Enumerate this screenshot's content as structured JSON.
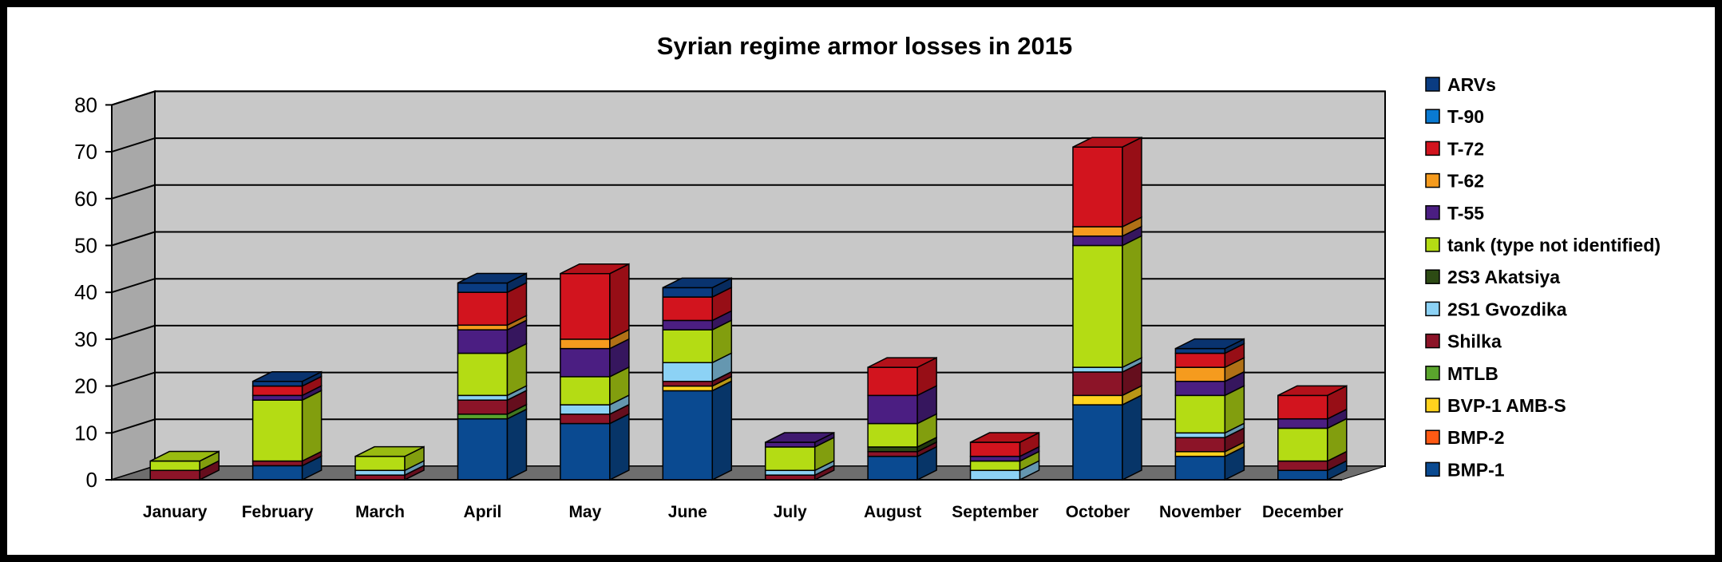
{
  "chart_data": {
    "type": "bar",
    "stacked": true,
    "style": "3d-stacked-column",
    "title": "Syrian regime armor losses in 2015",
    "xlabel": "",
    "ylabel": "",
    "ylim": [
      0,
      80
    ],
    "yticks": [
      "0",
      "10",
      "20",
      "30",
      "40",
      "50",
      "60",
      "70",
      "80"
    ],
    "grid": true,
    "legend_position": "right",
    "categories": [
      "January",
      "February",
      "March",
      "April",
      "May",
      "June",
      "July",
      "August",
      "September",
      "October",
      "November",
      "December"
    ],
    "series": [
      {
        "name": "BMP-1",
        "color": "#0a4a91",
        "values": [
          0,
          3,
          0,
          13,
          12,
          19,
          0,
          5,
          0,
          16,
          5,
          2
        ]
      },
      {
        "name": "BMP-2",
        "color": "#ff5a14",
        "values": [
          0,
          0,
          0,
          0,
          0,
          0,
          0,
          0,
          0,
          0,
          0,
          0
        ]
      },
      {
        "name": "BVP-1 AMB-S",
        "color": "#ffd21e",
        "values": [
          0,
          0,
          0,
          0,
          0,
          1,
          0,
          0,
          0,
          2,
          1,
          0
        ]
      },
      {
        "name": "MTLB",
        "color": "#5aa52d",
        "values": [
          0,
          0,
          0,
          1,
          0,
          0,
          0,
          0,
          0,
          0,
          0,
          0
        ]
      },
      {
        "name": "Shilka",
        "color": "#8c1428",
        "values": [
          2,
          1,
          1,
          3,
          2,
          1,
          1,
          1,
          0,
          5,
          3,
          2
        ]
      },
      {
        "name": "2S1 Gvozdika",
        "color": "#8cd2f5",
        "values": [
          0,
          0,
          1,
          1,
          2,
          4,
          1,
          0,
          2,
          1,
          1,
          0
        ]
      },
      {
        "name": "2S3 Akatsiya",
        "color": "#2d4b14",
        "values": [
          0,
          0,
          0,
          0,
          0,
          0,
          0,
          1,
          0,
          0,
          0,
          0
        ]
      },
      {
        "name": "tank (type not identified)",
        "color": "#b4dc14",
        "values": [
          2,
          13,
          3,
          9,
          6,
          7,
          5,
          5,
          2,
          26,
          8,
          7
        ]
      },
      {
        "name": "T-55",
        "color": "#4b1e82",
        "values": [
          0,
          1,
          0,
          5,
          6,
          2,
          1,
          6,
          1,
          2,
          3,
          2
        ]
      },
      {
        "name": "T-62",
        "color": "#f59b1e",
        "values": [
          0,
          0,
          0,
          1,
          2,
          0,
          0,
          0,
          0,
          2,
          3,
          0
        ]
      },
      {
        "name": "T-72",
        "color": "#d2141e",
        "values": [
          0,
          2,
          0,
          7,
          14,
          5,
          0,
          6,
          3,
          17,
          3,
          5
        ]
      },
      {
        "name": "T-90",
        "color": "#0a7ad2",
        "values": [
          0,
          0,
          0,
          0,
          0,
          0,
          0,
          0,
          0,
          0,
          0,
          0
        ]
      },
      {
        "name": "ARVs",
        "color": "#0a3c82",
        "values": [
          0,
          1,
          0,
          2,
          0,
          2,
          0,
          0,
          0,
          0,
          1,
          0
        ]
      }
    ]
  }
}
